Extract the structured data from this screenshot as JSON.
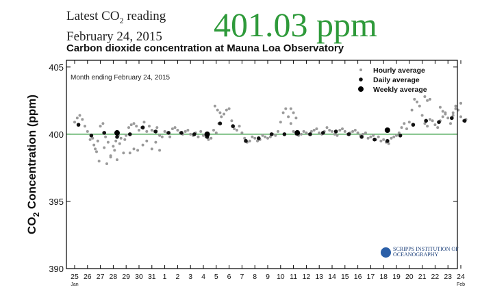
{
  "header": {
    "latest_prefix": "Latest CO",
    "latest_sub": "2",
    "latest_suffix": " reading",
    "date": "February 24, 2015",
    "reading": "401.03 ppm"
  },
  "logo": {
    "line1": "SCRIPPS INSTITUTION OF",
    "line2": "OCEANOGRAPHY"
  },
  "colors": {
    "reading": "#2e9a3a",
    "baseline": "#2e9a3a",
    "hourly": "#9a9a9a",
    "daily": "#111111",
    "weekly": "#000000"
  },
  "chart_data": {
    "type": "scatter",
    "title": "Carbon dioxide concentration at Mauna Loa Observatory",
    "annotation": "Month ending February 24, 2015",
    "ylabel_main": "CO",
    "ylabel_sub": "2",
    "ylabel_rest": " Concentration (ppm)",
    "ylim": [
      390,
      405.5
    ],
    "yticks": [
      390,
      395,
      400,
      405
    ],
    "xlim": [
      0,
      30.5
    ],
    "xticks": [
      "25",
      "26",
      "27",
      "28",
      "29",
      "30",
      "31",
      "1",
      "2",
      "3",
      "4",
      "5",
      "6",
      "7",
      "8",
      "9",
      "10",
      "11",
      "12",
      "13",
      "14",
      "15",
      "16",
      "17",
      "18",
      "19",
      "20",
      "21",
      "22",
      "23",
      "24"
    ],
    "xtick_sublabels": [
      {
        "tick": 0,
        "label": "Jan"
      },
      {
        "tick": 30,
        "label": "Feb"
      }
    ],
    "reference_line": 400,
    "legend_position": "top-right",
    "series": [
      {
        "name": "Hourly average",
        "marker": "small-gray",
        "x": [
          0.0,
          0.2,
          0.4,
          0.6,
          0.8,
          1.0,
          1.2,
          1.4,
          1.6,
          1.8,
          2.0,
          2.2,
          2.4,
          2.6,
          2.8,
          3.0,
          3.2,
          3.4,
          3.6,
          3.8,
          4.0,
          4.2,
          4.4,
          4.6,
          4.8,
          5.0,
          5.2,
          5.4,
          5.6,
          5.8,
          6.0,
          6.2,
          6.4,
          6.6,
          6.8,
          7.0,
          7.2,
          7.4,
          7.6,
          7.8,
          8.0,
          8.2,
          8.4,
          8.6,
          8.8,
          9.0,
          9.2,
          9.4,
          9.6,
          9.8,
          10.0,
          10.2,
          10.4,
          10.6,
          10.8,
          11.0,
          11.2,
          11.4,
          11.6,
          11.8,
          12.0,
          12.2,
          12.4,
          12.6,
          12.8,
          13.0,
          13.2,
          13.4,
          13.6,
          13.8,
          14.0,
          14.2,
          14.4,
          14.6,
          14.8,
          15.0,
          15.2,
          15.4,
          15.6,
          15.8,
          16.0,
          16.2,
          16.4,
          16.6,
          16.8,
          17.0,
          17.2,
          17.4,
          17.6,
          17.8,
          18.0,
          18.2,
          18.4,
          18.6,
          18.8,
          19.0,
          19.2,
          19.4,
          19.6,
          19.8,
          20.0,
          20.2,
          20.4,
          20.6,
          20.8,
          21.0,
          21.2,
          21.4,
          21.6,
          21.8,
          22.0,
          22.2,
          22.4,
          22.6,
          22.8,
          23.0,
          23.2,
          23.4,
          23.6,
          23.8,
          24.0,
          24.2,
          24.4,
          24.6,
          24.8,
          25.0,
          25.2,
          25.4,
          25.6,
          25.8,
          26.0,
          26.2,
          26.4,
          26.6,
          26.8,
          27.0,
          27.2,
          27.4,
          27.6,
          27.8,
          28.0,
          28.2,
          28.4,
          28.6,
          28.8,
          29.0,
          29.2,
          29.4,
          29.6,
          29.8,
          30.0,
          30.2,
          30.4,
          1.5,
          1.7,
          1.9,
          2.3,
          2.5,
          2.8,
          3.1,
          3.3,
          3.5,
          3.9,
          4.3,
          4.6,
          4.9,
          5.3,
          5.6,
          6.0,
          6.3,
          6.6,
          10.9,
          11.1,
          11.3,
          16.8,
          17.0,
          17.2,
          27.2,
          27.4,
          27.6,
          28.4,
          28.6,
          28.8,
          29.4,
          29.6,
          30.0
        ],
        "y": [
          400.9,
          401.2,
          401.4,
          401.1,
          400.6,
          400.2,
          399.6,
          399.7,
          398.9,
          399.5,
          400.6,
          400.8,
          399.8,
          399.4,
          398.4,
          399.1,
          399.5,
          399.9,
          399.7,
          398.6,
          399.9,
          400.5,
          400.7,
          400.8,
          400.6,
          400.3,
          400.5,
          400.9,
          400.2,
          400.6,
          400.3,
          400.2,
          400.5,
          399.9,
          399.8,
          400.2,
          400.1,
          399.8,
          400.4,
          400.5,
          400.3,
          400.1,
          400.0,
          400.2,
          400.3,
          400.0,
          399.9,
          400.1,
          399.8,
          400.2,
          399.9,
          399.8,
          399.6,
          399.7,
          400.3,
          400.1,
          400.8,
          401.3,
          401.5,
          401.8,
          401.9,
          401.0,
          400.4,
          400.3,
          400.6,
          400.1,
          399.7,
          399.4,
          399.5,
          399.8,
          399.7,
          399.5,
          399.6,
          399.9,
          399.8,
          399.7,
          399.8,
          400.0,
          399.9,
          400.2,
          400.9,
          401.6,
          401.9,
          401.3,
          400.8,
          400.2,
          400.0,
          399.9,
          400.0,
          400.2,
          400.1,
          400.0,
          400.2,
          400.3,
          400.4,
          400.1,
          400.0,
          400.2,
          400.5,
          400.3,
          400.2,
          400.0,
          399.9,
          400.3,
          400.4,
          400.2,
          400.0,
          400.1,
          400.2,
          400.3,
          400.1,
          399.9,
          400.0,
          400.1,
          399.7,
          399.8,
          399.9,
          399.6,
          399.8,
          399.5,
          399.6,
          399.4,
          399.3,
          399.7,
          399.8,
          399.9,
          400.1,
          400.5,
          400.8,
          400.4,
          400.9,
          401.8,
          402.6,
          402.4,
          402.1,
          401.4,
          400.8,
          400.6,
          401.1,
          401.0,
          400.7,
          400.5,
          401.0,
          401.3,
          401.5,
          401.2,
          400.8,
          401.4,
          402.1,
          401.8,
          401.3,
          401.0,
          401.1,
          399.2,
          398.7,
          398.0,
          399.0,
          397.8,
          398.3,
          398.8,
          398.1,
          399.3,
          399.6,
          398.6,
          398.9,
          398.8,
          399.2,
          399.5,
          398.9,
          399.4,
          398.8,
          402.1,
          401.8,
          401.6,
          401.9,
          401.6,
          401.2,
          402.8,
          402.5,
          402.6,
          402.0,
          401.7,
          401.6,
          401.6,
          401.9,
          402.3
        ]
      },
      {
        "name": "Daily average",
        "marker": "medium-black",
        "x": [
          0.3,
          1.3,
          2.3,
          3.3,
          4.3,
          5.3,
          6.3,
          7.3,
          8.3,
          9.3,
          10.3,
          11.3,
          12.3,
          13.3,
          14.3,
          15.3,
          16.3,
          17.3,
          18.3,
          19.3,
          20.3,
          21.3,
          22.3,
          23.3,
          24.3,
          25.3,
          26.3,
          27.3,
          28.3,
          29.3,
          30.3
        ],
        "y": [
          400.7,
          399.9,
          400.1,
          399.8,
          400.0,
          400.5,
          400.2,
          400.1,
          400.1,
          400.0,
          399.8,
          400.8,
          400.6,
          399.5,
          399.7,
          400.0,
          400.0,
          400.1,
          400.0,
          400.1,
          400.2,
          400.0,
          399.8,
          399.6,
          399.5,
          399.9,
          400.7,
          401.0,
          400.9,
          401.2,
          401.0
        ]
      },
      {
        "name": "Weekly average",
        "marker": "large-black",
        "x": [
          3.3,
          10.3,
          17.3,
          24.3
        ],
        "y": [
          400.1,
          400.0,
          400.1,
          400.3
        ]
      }
    ]
  }
}
